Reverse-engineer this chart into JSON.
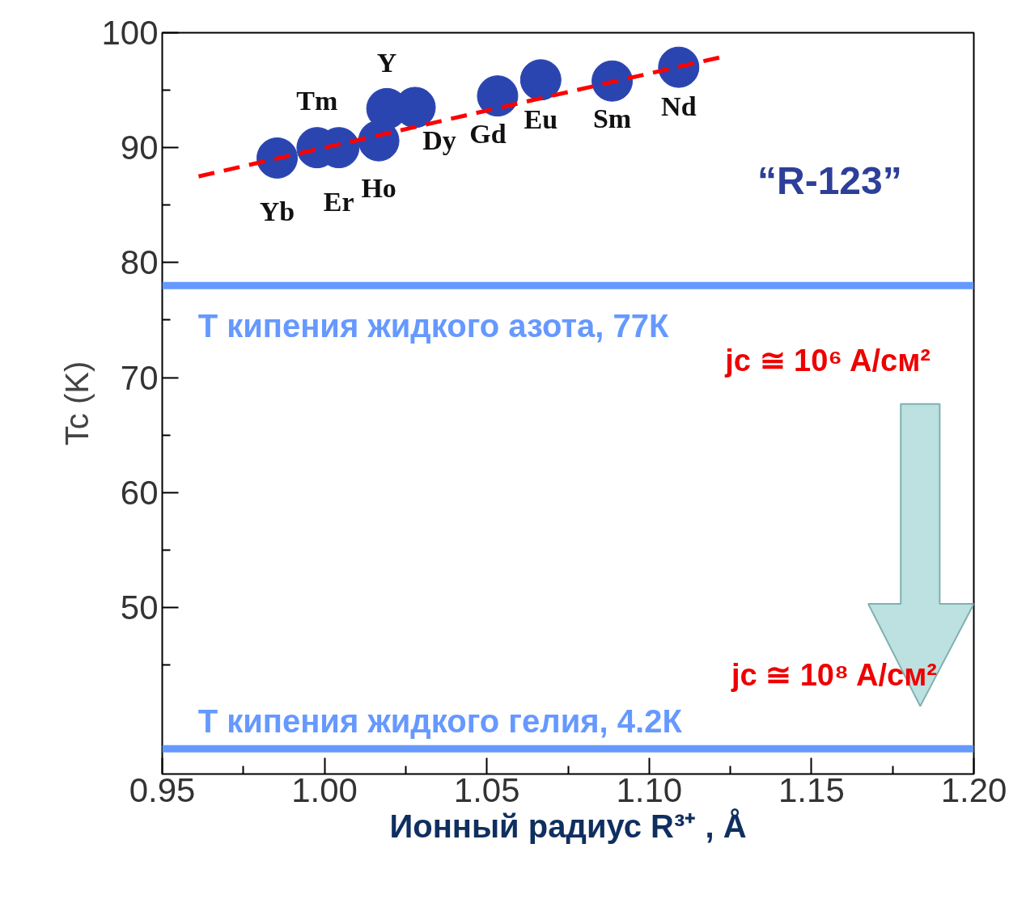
{
  "chart_data": {
    "type": "scatter",
    "xlabel": "Ионный радиус R³⁺ , Å",
    "ylabel": "Tc (K)",
    "xlim": [
      0.95,
      1.2
    ],
    "ylim": [
      35.5,
      100
    ],
    "xticks": [
      {
        "value": 0.95,
        "label": "0.95"
      },
      {
        "value": 1.0,
        "label": "1.00"
      },
      {
        "value": 1.05,
        "label": "1.05"
      },
      {
        "value": 1.1,
        "label": "1.10"
      },
      {
        "value": 1.15,
        "label": "1.15"
      },
      {
        "value": 1.2,
        "label": "1.20"
      }
    ],
    "yticks": [
      50,
      60,
      70,
      80,
      90,
      100
    ],
    "grid": false,
    "series": [
      {
        "marker": "circle",
        "color": "#2b45b0",
        "x": [
          0.9854,
          0.9977,
          1.0044,
          1.0167,
          1.0192,
          1.0279,
          1.0533,
          1.0666,
          1.0886,
          1.1091
        ],
        "values": [
          89.1,
          90.0,
          90.0,
          90.6,
          93.4,
          93.5,
          94.5,
          95.9,
          95.8,
          97.0
        ]
      },
      {
        "type": "line",
        "color": "#ff0000",
        "line_style": "dashed",
        "x": [
          0.9612,
          1.1225
        ],
        "values": [
          87.5,
          97.9
        ]
      }
    ],
    "ref_lines": [
      {
        "axis": "y",
        "value": 78.0,
        "label": "Т кипения жидкого азота, 77К",
        "color": "#6699ff"
      },
      {
        "axis": "y",
        "value": 37.7,
        "label": "Т кипения жидкого гелия, 4.2К",
        "color": "#6699ff"
      }
    ],
    "annotations": [
      {
        "text": "Yb",
        "x": 0.9854,
        "y": 89.1
      },
      {
        "text": "Tm",
        "x": 0.9977,
        "y": 90.0
      },
      {
        "text": "Er",
        "x": 1.0044,
        "y": 90.0
      },
      {
        "text": "Ho",
        "x": 1.0167,
        "y": 90.6
      },
      {
        "text": "Y",
        "x": 1.0192,
        "y": 93.4
      },
      {
        "text": "Dy",
        "x": 1.0279,
        "y": 93.5
      },
      {
        "text": "Gd",
        "x": 1.0533,
        "y": 94.5
      },
      {
        "text": "Eu",
        "x": 1.0666,
        "y": 95.9
      },
      {
        "text": "Sm",
        "x": 1.0886,
        "y": 95.8
      },
      {
        "text": "Nd",
        "x": 1.1091,
        "y": 97.0
      },
      "“R-123”",
      "jc ≅ 10⁶ A/см²",
      "jc ≅ 10⁸ A/см²"
    ]
  }
}
